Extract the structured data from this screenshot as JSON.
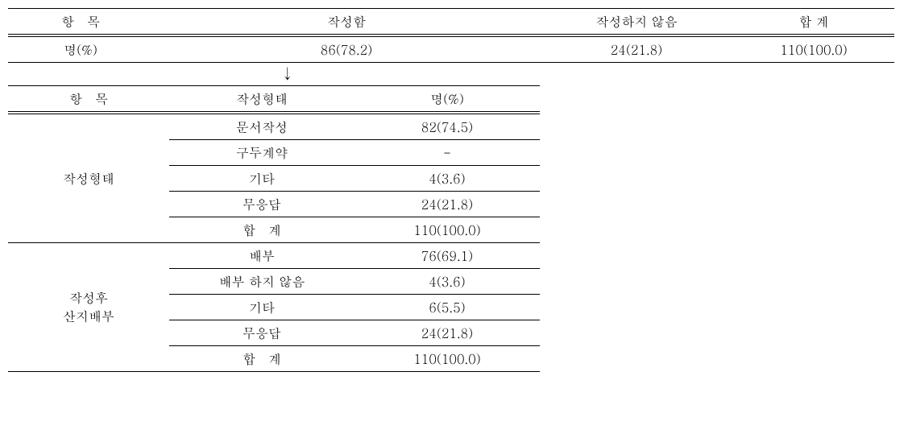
{
  "table1": {
    "headers": {
      "item": "항　목",
      "written": "작성함",
      "not_written": "작성하지 않음",
      "total": "합 계"
    },
    "row": {
      "label": "명(%)",
      "written": "86(78.2)",
      "not_written": "24(21.8)",
      "total": "110(100.0)"
    }
  },
  "arrow": "↓",
  "table2": {
    "headers": {
      "item": "항　목",
      "form": "작성형태",
      "count": "명(%)"
    },
    "group1": {
      "label": "작성형태",
      "rows": [
        {
          "form": "문서작성",
          "count": "82(74.5)"
        },
        {
          "form": "구두계약",
          "count": "-"
        },
        {
          "form": "기타",
          "count": "4(3.6)"
        },
        {
          "form": "무응답",
          "count": "24(21.8)"
        },
        {
          "form": "합　계",
          "count": "110(100.0)"
        }
      ]
    },
    "group2": {
      "label_line1": "작성후",
      "label_line2": "산지배부",
      "rows": [
        {
          "form": "배부",
          "count": "76(69.1)"
        },
        {
          "form": "배부 하지 않음",
          "count": "4(3.6)"
        },
        {
          "form": "기타",
          "count": "6(5.5)"
        },
        {
          "form": "무응답",
          "count": "24(21.8)"
        },
        {
          "form": "합　계",
          "count": "110(100.0)"
        }
      ]
    }
  },
  "style": {
    "font_family": "Batang",
    "font_size_pt": 12,
    "border_color": "#000000",
    "background_color": "#ffffff",
    "text_color": "#000000"
  }
}
